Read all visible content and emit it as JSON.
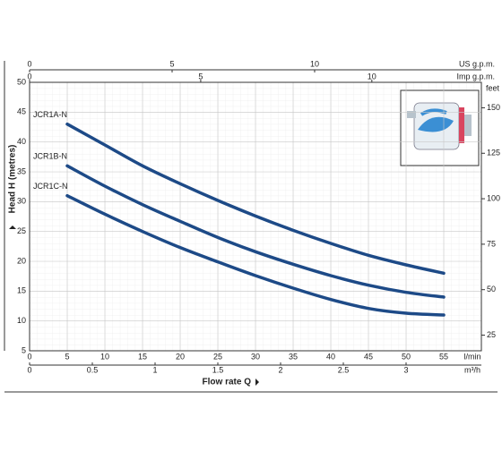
{
  "chart_data": {
    "type": "line",
    "y_label": "Head H (metres)",
    "x_label": "Flow rate Q",
    "x_unit": "l/min",
    "x2_unit": "m³/h",
    "top_unit": "US g.p.m.",
    "top2_unit": "Imp g.p.m.",
    "y2_unit": "feet",
    "x": [
      5,
      10,
      15,
      20,
      25,
      30,
      35,
      40,
      45,
      50,
      55
    ],
    "series": [
      {
        "name": "JCR1A-N",
        "color": "#1d4a87",
        "values": [
          43,
          39.5,
          36,
          33,
          30.2,
          27.6,
          25.2,
          23,
          21,
          19.4,
          18
        ]
      },
      {
        "name": "JCR1B-N",
        "color": "#1d4a87",
        "values": [
          36,
          32.6,
          29.5,
          26.7,
          24,
          21.6,
          19.5,
          17.6,
          16,
          14.8,
          14
        ]
      },
      {
        "name": "JCR1C-N",
        "color": "#1d4a87",
        "values": [
          31,
          27.9,
          25,
          22.3,
          19.9,
          17.6,
          15.5,
          13.6,
          12.1,
          11.3,
          11
        ]
      }
    ],
    "xlim": [
      0,
      60
    ],
    "xticks": [
      0,
      5,
      10,
      15,
      20,
      25,
      30,
      35,
      40,
      45,
      50,
      55
    ],
    "ylim": [
      5,
      50
    ],
    "yticks": [
      5,
      10,
      15,
      20,
      25,
      30,
      35,
      40,
      45,
      50
    ],
    "x2lim": [
      0,
      3.6
    ],
    "x2ticks": [
      0,
      0.5,
      1,
      1.5,
      2,
      2.5,
      3
    ],
    "toplim": [
      0,
      15.85
    ],
    "topticks": [
      0,
      5,
      10
    ],
    "top2lim": [
      0,
      13.2
    ],
    "top2ticks": [
      0,
      5,
      10
    ],
    "y2lim": [
      16.4,
      164
    ],
    "y2ticks": [
      25,
      50,
      75,
      100,
      125,
      150
    ],
    "grid": true
  }
}
